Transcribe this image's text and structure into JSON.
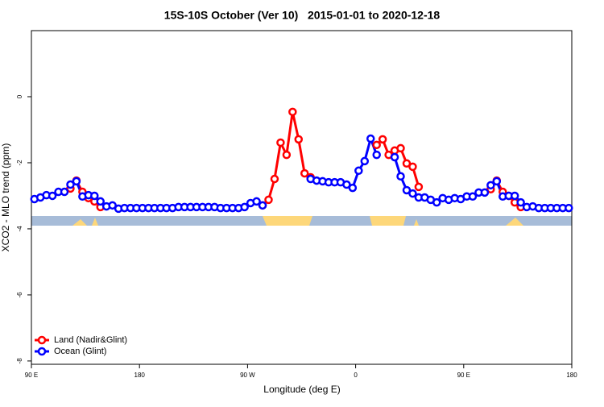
{
  "chart_data": {
    "type": "line",
    "title": "15S-10S October (Ver 10)   2015-01-01 to 2020-12-18",
    "x_label": "Longitude (deg E)",
    "y_label": "XCO2 - MLO trend (ppm)",
    "xlim": [
      90,
      540
    ],
    "ylim": [
      -8.1,
      2
    ],
    "xticks": [
      {
        "value": 90,
        "label": "90 E"
      },
      180,
      {
        "value": 270,
        "label": "90 W"
      },
      {
        "value": 360,
        "label": "0"
      },
      {
        "value": 450,
        "label": "90 E"
      },
      {
        "value": 540,
        "label": "180"
      }
    ],
    "yticks": [
      0,
      -2,
      -4,
      -6,
      -8
    ],
    "legend": "bottom-left",
    "x": [
      92.5,
      97.5,
      102.5,
      107.5,
      112.5,
      117.5,
      122.5,
      127.5,
      132.5,
      137.5,
      142.5,
      147.5,
      152.5,
      157.5,
      162.5,
      167.5,
      172.5,
      177.5,
      182.5,
      187.5,
      192.5,
      197.5,
      202.5,
      207.5,
      212.5,
      217.5,
      222.5,
      227.5,
      232.5,
      237.5,
      242.5,
      247.5,
      252.5,
      257.5,
      262.5,
      267.5,
      272.5,
      277.5,
      282.5,
      287.5,
      292.5,
      297.5,
      302.5,
      307.5,
      312.5,
      317.5,
      322.5,
      327.5,
      332.5,
      337.5,
      342.5,
      347.5,
      352.5,
      357.5,
      362.5,
      367.5,
      372.5,
      377.5,
      382.5,
      387.5,
      392.5,
      397.5,
      402.5,
      407.5,
      412.5,
      417.5,
      422.5,
      427.5,
      432.5,
      437.5,
      442.5,
      447.5,
      452.5,
      457.5,
      462.5,
      467.5,
      472.5,
      477.5,
      482.5,
      487.5,
      492.5,
      497.5,
      502.5,
      507.5,
      512.5,
      517.5,
      522.5,
      527.5,
      532.5,
      537.5
    ],
    "series": [
      {
        "name": "Land (Nadir&Glint)",
        "color": "#ff0000",
        "values": [
          null,
          null,
          null,
          null,
          null,
          null,
          -2.78,
          -2.54,
          -2.88,
          -3.07,
          -3.17,
          -3.34,
          null,
          null,
          null,
          null,
          null,
          null,
          null,
          null,
          null,
          null,
          null,
          null,
          null,
          null,
          null,
          null,
          null,
          null,
          null,
          null,
          null,
          null,
          null,
          null,
          null,
          null,
          -3.29,
          -3.12,
          -2.49,
          -1.39,
          -1.76,
          -0.46,
          -1.29,
          -2.32,
          -2.44,
          null,
          null,
          null,
          null,
          null,
          null,
          null,
          null,
          null,
          null,
          -1.46,
          -1.29,
          -1.76,
          -1.63,
          -1.56,
          -2.02,
          -2.12,
          -2.73,
          null,
          null,
          null,
          null,
          null,
          null,
          null,
          null,
          null,
          null,
          null,
          -2.8,
          -2.54,
          -2.88,
          -3.0,
          -3.2,
          -3.34,
          null,
          null,
          null,
          null,
          null,
          null,
          null,
          null
        ]
      },
      {
        "name": "Ocean (Glint)",
        "color": "#0000ff",
        "values": [
          -3.1,
          -3.05,
          -2.98,
          -3.0,
          -2.88,
          -2.88,
          -2.66,
          -2.56,
          -3.02,
          -2.98,
          -3.0,
          -3.17,
          -3.32,
          -3.29,
          -3.39,
          -3.37,
          -3.37,
          -3.37,
          -3.37,
          -3.37,
          -3.37,
          -3.37,
          -3.37,
          -3.37,
          -3.34,
          -3.34,
          -3.34,
          -3.34,
          -3.34,
          -3.34,
          -3.34,
          -3.37,
          -3.37,
          -3.37,
          -3.37,
          -3.34,
          -3.22,
          -3.17,
          -3.29,
          null,
          null,
          null,
          null,
          null,
          null,
          null,
          -2.49,
          -2.54,
          -2.56,
          -2.59,
          -2.59,
          -2.59,
          -2.66,
          -2.76,
          -2.24,
          -1.95,
          -1.27,
          -1.76,
          null,
          null,
          -1.83,
          -2.41,
          -2.83,
          -2.93,
          -3.05,
          -3.05,
          -3.12,
          -3.2,
          -3.07,
          -3.12,
          -3.07,
          -3.1,
          -3.02,
          -3.02,
          -2.9,
          -2.9,
          -2.68,
          -2.56,
          -3.02,
          -3.0,
          -3.0,
          -3.2,
          -3.34,
          -3.32,
          -3.37,
          -3.37,
          -3.37,
          -3.37,
          -3.37,
          -3.37
        ]
      }
    ]
  }
}
